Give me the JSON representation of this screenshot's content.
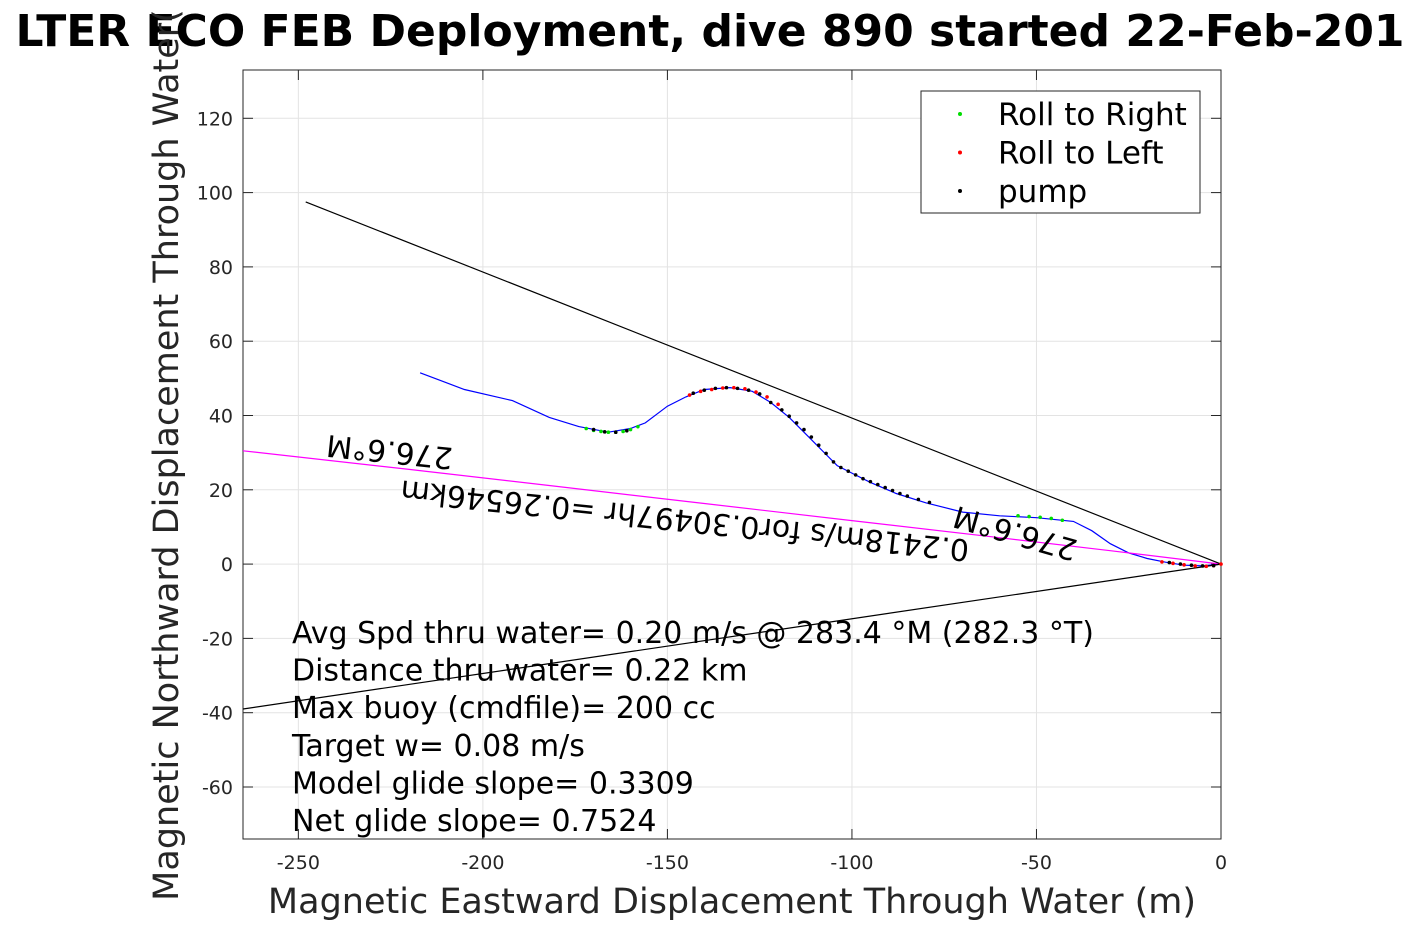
{
  "chart_data": {
    "type": "line",
    "title": "LTER ECO FEB Deployment, dive 890 started 22-Feb-201",
    "xlabel": "Magnetic Eastward Displacement Through Water (m)",
    "ylabel": "Magnetic Northward Displacement Through Water(",
    "xlim": [
      -265,
      0
    ],
    "ylim": [
      -74,
      133
    ],
    "xticks": [
      -250,
      -200,
      -150,
      -100,
      -50,
      0
    ],
    "yticks": [
      -60,
      -40,
      -20,
      0,
      20,
      40,
      60,
      80,
      100,
      120
    ],
    "grid": true,
    "legend": {
      "placement": "top-right",
      "entries": [
        {
          "label": "Roll to Right",
          "color": "#00dd00"
        },
        {
          "label": "Roll to Left",
          "color": "#ff0000"
        },
        {
          "label": "pump",
          "color": "#000000"
        }
      ]
    },
    "series": [
      {
        "color": "#0000ff",
        "style": "line",
        "x": [
          -217,
          -205,
          -192,
          -182,
          -174,
          -166,
          -160,
          -156,
          -150,
          -145,
          -140,
          -133,
          -127,
          -122,
          -117,
          -112,
          -107,
          -104,
          -100,
          -95,
          -88,
          -80,
          -70,
          -60,
          -50,
          -40,
          -35,
          -30,
          -25,
          -20,
          -15,
          -10,
          -5,
          0
        ],
        "y": [
          51.5,
          47,
          44,
          39.5,
          37,
          35.5,
          36.5,
          38,
          42.5,
          45,
          47,
          47.5,
          46.5,
          43.5,
          39.5,
          34.5,
          29.5,
          26.5,
          24.5,
          22,
          19,
          16.5,
          14,
          13,
          12.5,
          11.5,
          9,
          5.5,
          3,
          1.5,
          0.5,
          -0.3,
          -0.5,
          0
        ]
      },
      {
        "color": "#ff00ff",
        "style": "line",
        "x": [
          -265,
          -220,
          -180,
          -140,
          -100,
          -60,
          -30,
          0
        ],
        "y": [
          30.5,
          25.5,
          20.9,
          16.3,
          11.7,
          7.1,
          3.6,
          0
        ]
      },
      {
        "color": "#000000",
        "style": "line",
        "x": [
          -248,
          0
        ],
        "y": [
          97.5,
          0
        ]
      },
      {
        "color": "#000000",
        "style": "line",
        "x": [
          -265,
          0
        ],
        "y": [
          -39,
          0
        ]
      },
      {
        "name": "Roll to Right",
        "color": "#00dd00",
        "style": "points",
        "x": [
          -172,
          -170,
          -168,
          -166,
          -164,
          -162,
          -160,
          -158,
          -55,
          -52,
          -49,
          -46,
          -43
        ],
        "y": [
          36.5,
          36,
          35.7,
          35.5,
          35.5,
          35.7,
          36.2,
          37,
          13,
          12.8,
          12.6,
          12.3,
          11.8
        ]
      },
      {
        "name": "Roll to Left",
        "color": "#ff0000",
        "style": "points",
        "x": [
          -144,
          -141,
          -138,
          -135,
          -132,
          -129,
          -126,
          -123,
          -120,
          -16,
          -13,
          -10,
          -7,
          -4,
          -2,
          0
        ],
        "y": [
          45.5,
          46.5,
          47,
          47.4,
          47.5,
          47.2,
          46.3,
          45,
          43,
          0.6,
          0.2,
          -0.2,
          -0.5,
          -0.6,
          -0.4,
          0
        ]
      },
      {
        "name": "pump",
        "color": "#000000",
        "style": "points",
        "x": [
          -170,
          -167,
          -164,
          -161,
          -143,
          -140,
          -137,
          -134,
          -131,
          -128,
          -125,
          -122,
          -119,
          -117,
          -115,
          -113,
          -111,
          -109,
          -107,
          -105,
          -103,
          -101,
          -99,
          -97,
          -95,
          -93,
          -91,
          -89,
          -87,
          -85,
          -82,
          -79,
          -14,
          -11,
          -8,
          -5,
          -2
        ],
        "y": [
          36.2,
          35.6,
          35.5,
          35.9,
          46,
          46.8,
          47.3,
          47.5,
          47.3,
          46.8,
          45.8,
          43.5,
          41.5,
          39.8,
          38,
          36.2,
          34.2,
          32,
          29.8,
          27.5,
          26,
          25,
          24,
          23,
          22.2,
          21.4,
          20.6,
          19.8,
          19,
          18.3,
          17.4,
          16.6,
          0.4,
          0,
          -0.3,
          -0.5,
          -0.4
        ]
      }
    ],
    "track_labels": [
      {
        "text": "276.6°M",
        "x": -225,
        "y": 33,
        "rotation": 186
      },
      {
        "text": "0.2418m/s for0.30497hr =0.26546km",
        "x": -145,
        "y": 14.5,
        "rotation": 186
      },
      {
        "text": "276.6°M",
        "x": -55,
        "y": 11,
        "rotation": 196
      }
    ],
    "annotations": [
      "Avg Spd thru water=  0.20 m/s @ 283.4 °M (282.3 °T)",
      "Distance thru water=  0.22 km",
      "Max buoy (cmdfile)= 200 cc",
      "Target w= 0.08 m/s",
      "Model glide slope= 0.3309",
      "Net glide slope= 0.7524"
    ]
  }
}
